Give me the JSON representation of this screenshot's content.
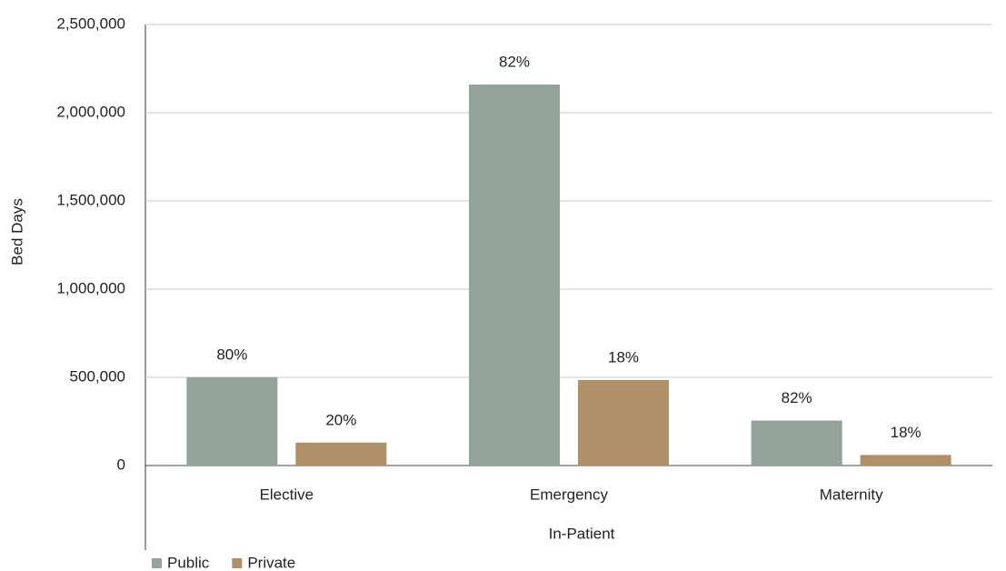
{
  "chart_data": {
    "type": "bar",
    "x_axis_label": "In-Patient",
    "y_axis_label": "Bed Days",
    "categories": [
      "Elective",
      "Emergency",
      "Maternity"
    ],
    "series": [
      {
        "name": "Public",
        "color": "#93a39a",
        "values": [
          500000,
          2160000,
          255000
        ],
        "labels": [
          "80%",
          "82%",
          "82%"
        ]
      },
      {
        "name": "Private",
        "color": "#b09068",
        "values": [
          130000,
          485000,
          60000
        ],
        "labels": [
          "20%",
          "18%",
          "18%"
        ]
      }
    ],
    "ylim": [
      0,
      2500000
    ],
    "yticks": [
      0,
      {
        "value": 500000,
        "label": "500,000"
      },
      {
        "value": 1000000,
        "label": "1,000,000"
      },
      {
        "value": 1500000,
        "label": "1,500,000"
      },
      {
        "value": 2000000,
        "label": "2,000,000"
      },
      {
        "value": 2500000,
        "label": "2,500,000"
      }
    ],
    "grid": true,
    "legend": "bottom-left"
  }
}
